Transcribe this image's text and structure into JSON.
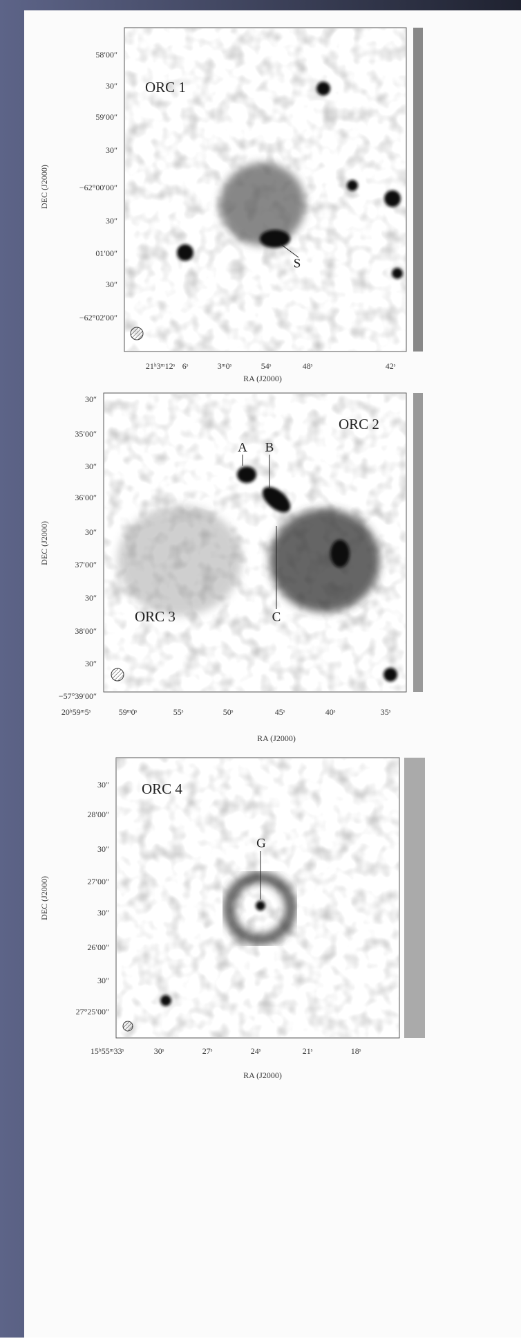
{
  "panels": [
    {
      "labels": [
        "ORC 1"
      ],
      "annotations": [
        "S"
      ],
      "dec_axis": "DEC (J2000)",
      "ra_axis": "RA (J2000)",
      "dec_ticks": [
        "58′00″",
        "30″",
        "59′00″",
        "30″",
        "−62°00′00″",
        "30″",
        "01′00″",
        "30″",
        "−62°02′00″"
      ],
      "ra_ticks": [
        "21ʰ3ᵐ12ˢ",
        "6ˢ",
        "3ᵐ0ˢ",
        "54ˢ",
        "48ˢ",
        "42ˢ"
      ]
    },
    {
      "labels": [
        "ORC 2",
        "ORC 3"
      ],
      "annotations": [
        "A",
        "B",
        "C"
      ],
      "dec_axis": "DEC (J2000)",
      "ra_axis": "RA (J2000)",
      "dec_ticks": [
        "30″",
        "35′00″",
        "30″",
        "36′00″",
        "30″",
        "37′00″",
        "30″",
        "38′00″",
        "30″",
        "−57°39′00″"
      ],
      "ra_ticks": [
        "20ʰ59ᵐ5ˢ",
        "59ᵐ0ˢ",
        "55ˢ",
        "50ˢ",
        "45ˢ",
        "40ˢ",
        "35ˢ"
      ]
    },
    {
      "labels": [
        "ORC 4"
      ],
      "annotations": [
        "G"
      ],
      "dec_axis": "DEC (J2000)",
      "ra_axis": "RA (J2000)",
      "dec_ticks": [
        "30″",
        "28′00″",
        "30″",
        "27′00″",
        "30″",
        "26′00″",
        "30″",
        "27°25′00″"
      ],
      "ra_ticks": [
        "15ʰ55ᵐ33ˢ",
        "30ˢ",
        "27ˢ",
        "24ˢ",
        "21ˢ",
        "18ˢ"
      ]
    }
  ]
}
